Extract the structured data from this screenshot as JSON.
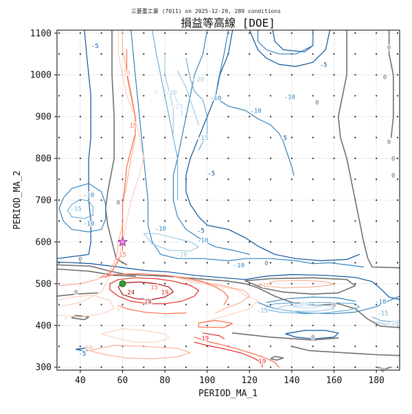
{
  "chart_data": {
    "type": "contour",
    "subtitle": "三菱重工業 (7011) on 2025-12-29, 289 conditions",
    "title": "損益等高線 [DOE]",
    "xlabel": "PERIOD_MA_1",
    "ylabel": "PERIOD_MA_2",
    "xlim": [
      29,
      191
    ],
    "ylim": [
      293,
      1107
    ],
    "x_ticks": [
      "40",
      "60",
      "80",
      "100",
      "120",
      "140",
      "160",
      "180"
    ],
    "y_ticks": [
      "300",
      "400",
      "500",
      "600",
      "700",
      "800",
      "900",
      "1000",
      "1100"
    ],
    "grid": true,
    "doe_grid": {
      "x": [
        30,
        40,
        50,
        60,
        70,
        80,
        90,
        100,
        110,
        120,
        130,
        140,
        150,
        160,
        170,
        180,
        190
      ],
      "y": [
        300,
        350,
        400,
        450,
        500,
        550,
        600,
        650,
        700,
        750,
        800,
        850,
        900,
        950,
        1000,
        1050,
        1100
      ]
    },
    "best_point": {
      "x": 60,
      "y": 500
    },
    "current_point": {
      "x": 60,
      "y": 600
    },
    "contour_levels": [
      -25,
      -20,
      -15,
      -10,
      -5,
      0,
      5,
      10,
      15,
      19,
      24
    ],
    "contour_labels": [
      {
        "x": 72,
        "y": 457,
        "text": "24"
      },
      {
        "x": 64,
        "y": 480,
        "text": "24"
      },
      {
        "x": 80,
        "y": 480,
        "text": "19"
      },
      {
        "x": 99,
        "y": 370,
        "text": "19"
      },
      {
        "x": 126,
        "y": 315,
        "text": "19"
      },
      {
        "x": 75,
        "y": 492,
        "text": "15"
      },
      {
        "x": 60,
        "y": 570,
        "text": "15"
      },
      {
        "x": 65,
        "y": 880,
        "text": "15"
      },
      {
        "x": 62,
        "y": 1005,
        "text": "10"
      },
      {
        "x": 128,
        "y": 497,
        "text": "10"
      },
      {
        "x": 44,
        "y": 348,
        "text": "10"
      },
      {
        "x": 33,
        "y": 420,
        "text": "5"
      },
      {
        "x": 58,
        "y": 440,
        "text": "5"
      },
      {
        "x": 76,
        "y": 960,
        "text": "5"
      },
      {
        "x": 145,
        "y": 452,
        "text": "-20"
      },
      {
        "x": 126,
        "y": 437,
        "text": "-15"
      },
      {
        "x": 183,
        "y": 430,
        "text": "-15"
      },
      {
        "x": 188,
        "y": 407,
        "text": "-20"
      },
      {
        "x": 182,
        "y": 458,
        "text": "-10"
      },
      {
        "x": 88,
        "y": 570,
        "text": "-20"
      },
      {
        "x": 78,
        "y": 633,
        "text": "-10"
      },
      {
        "x": 98,
        "y": 605,
        "text": "-10"
      },
      {
        "x": 115,
        "y": 545,
        "text": "-10"
      },
      {
        "x": 38,
        "y": 680,
        "text": "-15"
      },
      {
        "x": 44,
        "y": 713,
        "text": "-10"
      },
      {
        "x": 44,
        "y": 645,
        "text": "-10"
      },
      {
        "x": 83,
        "y": 958,
        "text": "-20"
      },
      {
        "x": 86,
        "y": 925,
        "text": "-25"
      },
      {
        "x": 96,
        "y": 990,
        "text": "-20"
      },
      {
        "x": 98,
        "y": 850,
        "text": "-15"
      },
      {
        "x": 97,
        "y": 628,
        "text": "-5"
      },
      {
        "x": 102,
        "y": 765,
        "text": "-5"
      },
      {
        "x": 104,
        "y": 945,
        "text": "-10"
      },
      {
        "x": 123,
        "y": 915,
        "text": "-10"
      },
      {
        "x": 136,
        "y": 850,
        "text": "-5"
      },
      {
        "x": 139,
        "y": 948,
        "text": "-10"
      },
      {
        "x": 155,
        "y": 1025,
        "text": "-5"
      },
      {
        "x": 47,
        "y": 1070,
        "text": "-5"
      },
      {
        "x": 58,
        "y": 695,
        "text": "0"
      },
      {
        "x": 152,
        "y": 935,
        "text": "0"
      },
      {
        "x": 184,
        "y": 995,
        "text": "0"
      },
      {
        "x": 186,
        "y": 1066,
        "text": "0"
      },
      {
        "x": 186,
        "y": 840,
        "text": "0"
      },
      {
        "x": 188,
        "y": 800,
        "text": "0"
      },
      {
        "x": 188,
        "y": 760,
        "text": "0"
      },
      {
        "x": 160,
        "y": 450,
        "text": "0"
      },
      {
        "x": 150,
        "y": 373,
        "text": "0"
      },
      {
        "x": 128,
        "y": 550,
        "text": "0"
      },
      {
        "x": 40,
        "y": 560,
        "text": "0"
      },
      {
        "x": 38,
        "y": 480,
        "text": "0"
      },
      {
        "x": 41,
        "y": 333,
        "text": "-5"
      },
      {
        "x": 183,
        "y": 294,
        "text": "0"
      }
    ]
  },
  "colors": {
    "zero": "#6e6e6e",
    "levels": {
      "-25": "#c6dbef",
      "-20": "#9ecae1",
      "-15": "#6baed6",
      "-10": "#3182bd",
      "-5": "#08519c",
      "0": "#6e6e6e",
      "5": "#fdd0bf",
      "10": "#fcae91",
      "15": "#fb6a4a",
      "19": "#de2d26",
      "24": "#a50f15"
    },
    "best_fill": "#2ca02c",
    "current_fill": "#ee82ee"
  }
}
